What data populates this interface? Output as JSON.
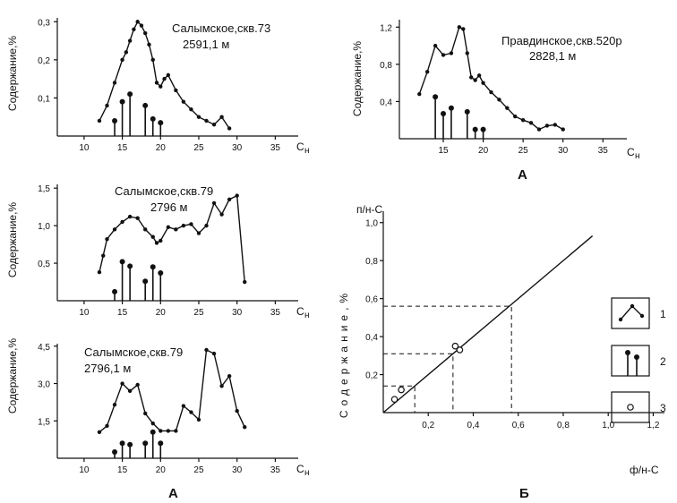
{
  "chart_data": [
    {
      "type": "line",
      "annotation": [
        "Салымское,скв.73",
        "2591,1 м"
      ],
      "ylabel": "Содержание,%",
      "xlabel": "C",
      "xlabel_sub": "н",
      "xticks": [
        10,
        15,
        20,
        25,
        30,
        35
      ],
      "yticks": [
        0.1,
        0.2,
        0.3
      ],
      "ytick_labels": [
        "0,1",
        "0,2",
        "0,3"
      ],
      "xlim": [
        6.5,
        38
      ],
      "ylim": [
        0,
        0.31
      ],
      "line": {
        "x": [
          12,
          13,
          14,
          15,
          15.5,
          16,
          16.5,
          17,
          17.5,
          18,
          18.5,
          19,
          19.5,
          20,
          20.5,
          21,
          22,
          23,
          24,
          25,
          26,
          27,
          28,
          29
        ],
        "y": [
          0.04,
          0.08,
          0.14,
          0.2,
          0.22,
          0.25,
          0.28,
          0.3,
          0.29,
          0.27,
          0.24,
          0.2,
          0.14,
          0.13,
          0.15,
          0.16,
          0.12,
          0.09,
          0.07,
          0.05,
          0.04,
          0.03,
          0.05,
          0.02
        ]
      },
      "sticks": {
        "x": [
          14,
          15,
          16,
          18,
          19,
          20
        ],
        "y": [
          0.04,
          0.09,
          0.11,
          0.08,
          0.045,
          0.035
        ]
      }
    },
    {
      "type": "line",
      "annotation": [
        "Правдинское,скв.520р",
        "2828,1 м"
      ],
      "ylabel": "Содержание,%",
      "xlabel": "C",
      "xlabel_sub": "н",
      "xticks": [
        15,
        20,
        25,
        30,
        35
      ],
      "yticks": [
        0.4,
        0.8,
        1.2
      ],
      "ytick_labels": [
        "0,4",
        "0,8",
        "1,2"
      ],
      "xlim": [
        9.5,
        38
      ],
      "ylim": [
        0,
        1.28
      ],
      "caption": "А",
      "line": {
        "x": [
          12,
          13,
          14,
          15,
          16,
          17,
          17.5,
          18,
          18.5,
          19,
          19.5,
          20,
          21,
          22,
          23,
          24,
          25,
          26,
          27,
          28,
          29,
          30
        ],
        "y": [
          0.48,
          0.72,
          1.0,
          0.9,
          0.92,
          1.2,
          1.18,
          0.92,
          0.66,
          0.63,
          0.68,
          0.6,
          0.5,
          0.42,
          0.33,
          0.24,
          0.2,
          0.17,
          0.1,
          0.14,
          0.15,
          0.1
        ]
      },
      "sticks": {
        "x": [
          14,
          15,
          16,
          18,
          19,
          20
        ],
        "y": [
          0.45,
          0.27,
          0.33,
          0.29,
          0.1,
          0.1
        ]
      }
    },
    {
      "type": "line",
      "annotation": [
        "Салымское,скв.79",
        "2796 м"
      ],
      "ylabel": "Содержание,%",
      "xlabel": "C",
      "xlabel_sub": "н",
      "xticks": [
        10,
        15,
        20,
        25,
        30,
        35
      ],
      "yticks": [
        0.5,
        1.0,
        1.5
      ],
      "ytick_labels": [
        "0,5",
        "1,0",
        "1,5"
      ],
      "xlim": [
        6.5,
        38
      ],
      "ylim": [
        0,
        1.55
      ],
      "line": {
        "x": [
          12,
          12.5,
          13,
          14,
          15,
          16,
          17,
          18,
          19,
          19.5,
          20,
          21,
          22,
          23,
          24,
          25,
          26,
          27,
          28,
          29,
          30,
          31
        ],
        "y": [
          0.38,
          0.6,
          0.82,
          0.95,
          1.05,
          1.12,
          1.1,
          0.95,
          0.85,
          0.77,
          0.8,
          0.98,
          0.95,
          1.0,
          1.02,
          0.9,
          1.0,
          1.3,
          1.15,
          1.35,
          1.4,
          0.25
        ]
      },
      "sticks": {
        "x": [
          14,
          15,
          16,
          18,
          19,
          20
        ],
        "y": [
          0.12,
          0.52,
          0.46,
          0.26,
          0.45,
          0.37
        ]
      }
    },
    {
      "type": "line",
      "annotation": [
        "Салымское,скв.79",
        "2796,1 м"
      ],
      "ylabel": "Содержание,%",
      "xlabel": "C",
      "xlabel_sub": "н",
      "xticks": [
        10,
        15,
        20,
        25,
        30,
        35
      ],
      "yticks": [
        1.5,
        3.0,
        4.5
      ],
      "ytick_labels": [
        "1,5",
        "3,0",
        "4,5"
      ],
      "xlim": [
        6.5,
        38
      ],
      "ylim": [
        0,
        4.6
      ],
      "caption": "А",
      "line": {
        "x": [
          12,
          13,
          14,
          15,
          16,
          17,
          18,
          19,
          20,
          21,
          22,
          23,
          24,
          25,
          26,
          27,
          28,
          29,
          30,
          31
        ],
        "y": [
          1.05,
          1.3,
          2.15,
          3.0,
          2.7,
          2.95,
          1.8,
          1.4,
          1.1,
          1.1,
          1.1,
          2.1,
          1.85,
          1.55,
          4.35,
          4.2,
          2.9,
          3.3,
          1.9,
          1.25
        ]
      },
      "sticks": {
        "x": [
          14,
          15,
          16,
          18,
          19,
          20
        ],
        "y": [
          0.25,
          0.6,
          0.55,
          0.6,
          1.05,
          0.6
        ]
      }
    },
    {
      "type": "scatter",
      "ylabel_top": "п/н-С",
      "ylabel": "Содержание,%",
      "xlabel": "ф/н-С",
      "xticks": [
        0.2,
        0.4,
        0.6,
        0.8,
        1.0,
        1.2
      ],
      "xtick_labels": [
        "0,2",
        "0,4",
        "0,6",
        "0,8",
        "1,0",
        "1,2"
      ],
      "yticks": [
        0.2,
        0.4,
        0.6,
        0.8,
        1.0
      ],
      "ytick_labels": [
        "0,2",
        "0,4",
        "0,6",
        "0,8",
        "1,0"
      ],
      "xlim": [
        0,
        1.25
      ],
      "ylim": [
        0,
        1.06
      ],
      "caption": "Б",
      "points": {
        "x": [
          0.05,
          0.08,
          0.32,
          0.34
        ],
        "y": [
          0.07,
          0.12,
          0.35,
          0.33
        ]
      },
      "line": {
        "x": [
          0,
          0.93
        ],
        "y": [
          0,
          0.93
        ]
      },
      "dashed_refs": [
        [
          0.14,
          0.14
        ],
        [
          0.31,
          0.31
        ],
        [
          0.57,
          0.56
        ]
      ],
      "legend": [
        {
          "symbol": "line",
          "label": "1"
        },
        {
          "symbol": "stick",
          "label": "2"
        },
        {
          "symbol": "circle",
          "label": "3"
        }
      ]
    }
  ]
}
